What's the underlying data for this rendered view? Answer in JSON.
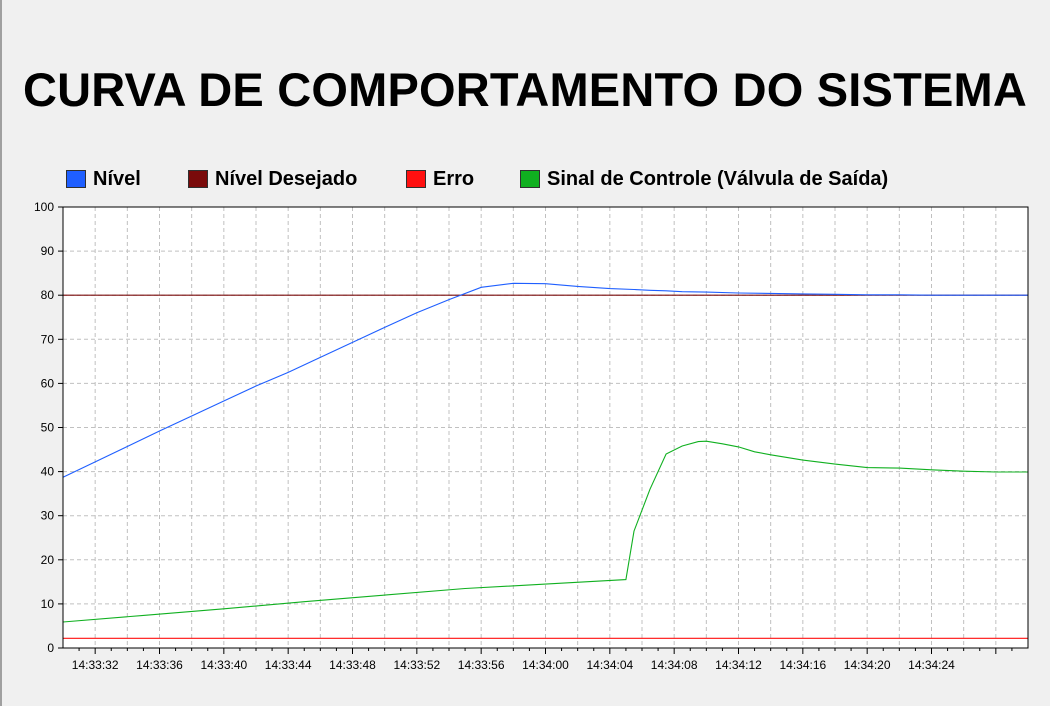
{
  "title": "CURVA DE COMPORTAMENTO DO SISTEMA",
  "legend": [
    {
      "label": "Nível",
      "color": "#1f5fff"
    },
    {
      "label": "Nível Desejado",
      "color": "#7a0a0a"
    },
    {
      "label": "Erro",
      "color": "#ff1010"
    },
    {
      "label": "Sinal de Controle (Válvula de Saída)",
      "color": "#10b020"
    }
  ],
  "chart_data": {
    "type": "line",
    "ylim": [
      0,
      100
    ],
    "yticks": [
      0,
      10,
      20,
      30,
      40,
      50,
      60,
      70,
      80,
      90,
      100
    ],
    "xlim_seconds": [
      0,
      60
    ],
    "xtick_labels": [
      "14:33:32",
      "14:33:36",
      "14:33:40",
      "14:33:44",
      "14:33:48",
      "14:33:52",
      "14:33:56",
      "14:34:00",
      "14:34:04",
      "14:34:08",
      "14:34:12",
      "14:34:16",
      "14:34:20",
      "14:34:24"
    ],
    "grid": true,
    "legend_position": "top-left",
    "series": [
      {
        "name": "Nível",
        "color": "#1f5fff",
        "x": [
          0,
          2,
          4,
          6,
          8,
          10,
          12,
          14,
          16,
          18,
          19,
          20,
          22,
          24,
          26,
          28,
          30,
          32,
          34,
          35.5,
          36.5,
          37.5,
          38.5,
          40,
          42,
          44,
          46,
          48,
          50,
          52,
          54,
          56,
          58,
          60
        ],
        "y": [
          38.7,
          42.2,
          45.7,
          49.2,
          52.6,
          56.0,
          59.4,
          62.5,
          65.9,
          69.3,
          71.0,
          72.7,
          76.0,
          79.0,
          81.8,
          82.7,
          82.6,
          82.0,
          81.5,
          81.3,
          81.1,
          81.0,
          80.8,
          80.7,
          80.5,
          80.4,
          80.3,
          80.2,
          80.1,
          80.1,
          80.0,
          80.0,
          80.0,
          80.0
        ]
      },
      {
        "name": "Nível Desejado",
        "color": "#7a0a0a",
        "x": [
          0,
          60
        ],
        "y": [
          80,
          80
        ]
      },
      {
        "name": "Erro",
        "color": "#ff1010",
        "x": [
          0,
          60
        ],
        "y": [
          2.2,
          2.2
        ]
      },
      {
        "name": "Sinal de Controle (Válvula de Saída)",
        "color": "#10b020",
        "x": [
          0,
          5,
          10,
          15,
          20,
          25,
          30,
          35,
          35.5,
          36.5,
          37.5,
          38.5,
          39.5,
          40,
          41,
          42,
          43,
          44,
          46,
          48,
          50,
          52,
          54,
          56,
          58,
          60
        ],
        "y": [
          5.9,
          7.4,
          8.9,
          10.5,
          12.0,
          13.5,
          14.5,
          15.5,
          26.5,
          36.0,
          44.0,
          45.8,
          46.8,
          46.9,
          46.3,
          45.6,
          44.5,
          43.8,
          42.6,
          41.7,
          40.9,
          40.8,
          40.4,
          40.1,
          39.9,
          39.9
        ]
      }
    ]
  }
}
